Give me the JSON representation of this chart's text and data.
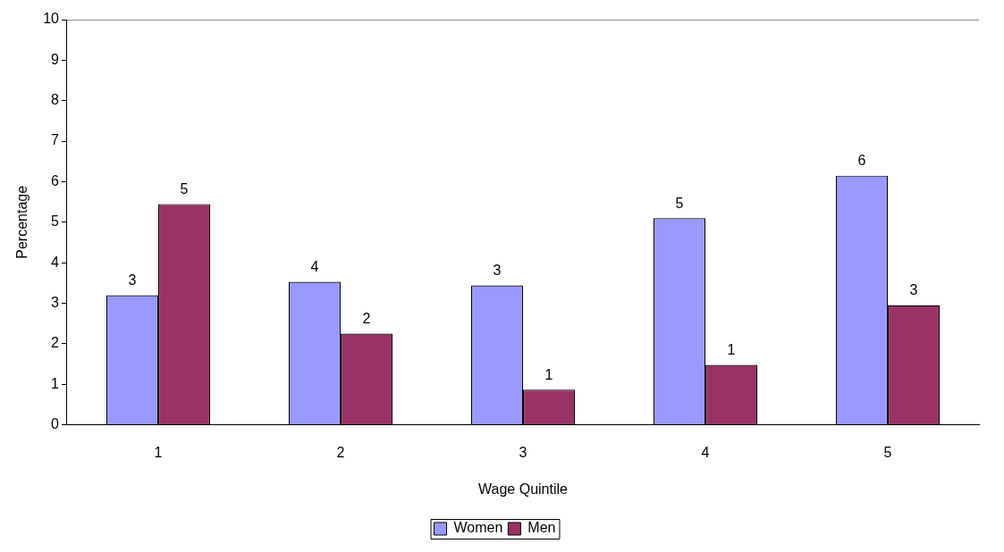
{
  "chart_data": {
    "type": "bar",
    "xlabel": "Wage Quintile",
    "ylabel": "Percentage",
    "categories": [
      "1",
      "2",
      "3",
      "4",
      "5"
    ],
    "series": [
      {
        "name": "Women",
        "color": "#9999ff",
        "values": [
          3.2,
          3.53,
          3.44,
          5.1,
          6.15
        ],
        "value_labels": [
          "3",
          "4",
          "3",
          "5",
          "6"
        ]
      },
      {
        "name": "Men",
        "color": "#993366",
        "values": [
          5.45,
          2.25,
          0.87,
          1.48,
          2.95
        ],
        "value_labels": [
          "5",
          "2",
          "1",
          "1",
          "3"
        ]
      }
    ],
    "ylim": [
      0,
      10
    ],
    "yticks": [
      0,
      1,
      2,
      3,
      4,
      5,
      6,
      7,
      8,
      9,
      10
    ],
    "grid": false,
    "legend": "bottom"
  }
}
